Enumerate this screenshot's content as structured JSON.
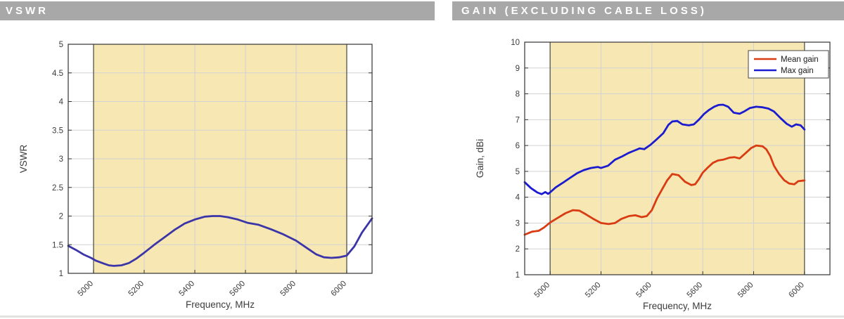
{
  "page": {
    "background": "#ffffff",
    "header_bar_color": "#a8a8a8",
    "header_text_color": "#ffffff"
  },
  "panels": [
    {
      "header": "VSWR"
    },
    {
      "header": "GAIN (EXCLUDING CABLE LOSS)"
    }
  ],
  "chart_data": [
    {
      "type": "line",
      "title": "VSWR",
      "xlabel": "Frequency, MHz",
      "ylabel": "VSWR",
      "xlim": [
        4900,
        6100
      ],
      "ylim": [
        1,
        5
      ],
      "xticks": [
        5000,
        5200,
        5400,
        5600,
        5800,
        6000
      ],
      "yticks": [
        1,
        1.5,
        2,
        2.5,
        3,
        3.5,
        4,
        4.5,
        5
      ],
      "grid": true,
      "grid_color": "#d2d2d2",
      "axis_color": "#333333",
      "tick_label_color": "#3c3c3c",
      "highlight_band": {
        "from": 5000,
        "to": 6000,
        "color": "#f7e7b2",
        "edge_color": "#55544b"
      },
      "legend": null,
      "series": [
        {
          "name": "VSWR",
          "color": "#3b35a8",
          "x": [
            4900,
            4930,
            4960,
            4990,
            5010,
            5040,
            5060,
            5080,
            5110,
            5140,
            5170,
            5200,
            5240,
            5280,
            5320,
            5360,
            5400,
            5440,
            5470,
            5500,
            5530,
            5570,
            5610,
            5650,
            5700,
            5750,
            5800,
            5850,
            5880,
            5910,
            5940,
            5970,
            6000,
            6030,
            6060,
            6100
          ],
          "y": [
            1.48,
            1.41,
            1.33,
            1.27,
            1.22,
            1.17,
            1.14,
            1.13,
            1.14,
            1.18,
            1.26,
            1.36,
            1.5,
            1.63,
            1.76,
            1.87,
            1.94,
            1.99,
            2.0,
            2.0,
            1.98,
            1.94,
            1.88,
            1.85,
            1.77,
            1.68,
            1.57,
            1.42,
            1.33,
            1.28,
            1.27,
            1.28,
            1.31,
            1.47,
            1.71,
            1.96
          ]
        }
      ]
    },
    {
      "type": "line",
      "title": "GAIN (EXCLUDING CABLE LOSS)",
      "xlabel": "Frequency, MHz",
      "ylabel": "Gain, dBi",
      "xlim": [
        4900,
        6100
      ],
      "ylim": [
        1,
        10
      ],
      "xticks": [
        5000,
        5200,
        5400,
        5600,
        5800,
        6000
      ],
      "yticks": [
        1,
        2,
        3,
        4,
        5,
        6,
        7,
        8,
        9,
        10
      ],
      "grid": true,
      "grid_color": "#d2d2d2",
      "axis_color": "#333333",
      "tick_label_color": "#3c3c3c",
      "highlight_band": {
        "from": 5000,
        "to": 6000,
        "color": "#f7e7b2",
        "edge_color": "#55544b"
      },
      "legend": {
        "position": "top-right",
        "entries": [
          "Mean gain",
          "Max gain"
        ]
      },
      "series": [
        {
          "name": "Mean gain",
          "color": "#d93b12",
          "x": [
            4900,
            4930,
            4955,
            4975,
            5000,
            5030,
            5060,
            5090,
            5115,
            5140,
            5170,
            5200,
            5230,
            5255,
            5280,
            5310,
            5335,
            5360,
            5380,
            5400,
            5420,
            5440,
            5460,
            5480,
            5505,
            5530,
            5555,
            5570,
            5585,
            5600,
            5620,
            5640,
            5660,
            5680,
            5705,
            5725,
            5745,
            5770,
            5790,
            5810,
            5835,
            5850,
            5865,
            5880,
            5900,
            5920,
            5940,
            5960,
            5975,
            6000
          ],
          "y": [
            2.55,
            2.67,
            2.7,
            2.82,
            3.02,
            3.2,
            3.38,
            3.5,
            3.48,
            3.34,
            3.16,
            3.0,
            2.96,
            3.0,
            3.16,
            3.27,
            3.3,
            3.23,
            3.27,
            3.5,
            3.95,
            4.3,
            4.65,
            4.9,
            4.85,
            4.6,
            4.47,
            4.5,
            4.7,
            4.95,
            5.15,
            5.33,
            5.42,
            5.45,
            5.53,
            5.55,
            5.5,
            5.72,
            5.9,
            6.0,
            5.97,
            5.85,
            5.6,
            5.22,
            4.9,
            4.66,
            4.53,
            4.5,
            4.62,
            4.65
          ]
        },
        {
          "name": "Max gain",
          "color": "#1b1ccf",
          "x": [
            4900,
            4925,
            4950,
            4967,
            4981,
            4992,
            5000,
            5022,
            5050,
            5077,
            5105,
            5132,
            5160,
            5187,
            5200,
            5228,
            5255,
            5283,
            5310,
            5330,
            5352,
            5370,
            5395,
            5420,
            5445,
            5465,
            5480,
            5500,
            5520,
            5545,
            5565,
            5585,
            5605,
            5625,
            5645,
            5662,
            5680,
            5700,
            5722,
            5745,
            5765,
            5785,
            5810,
            5835,
            5858,
            5880,
            5905,
            5930,
            5950,
            5967,
            5985,
            6000
          ],
          "y": [
            4.58,
            4.35,
            4.18,
            4.12,
            4.2,
            4.13,
            4.19,
            4.38,
            4.56,
            4.74,
            4.92,
            5.05,
            5.13,
            5.17,
            5.13,
            5.22,
            5.45,
            5.58,
            5.72,
            5.8,
            5.89,
            5.86,
            6.03,
            6.25,
            6.48,
            6.8,
            6.93,
            6.95,
            6.82,
            6.78,
            6.82,
            7.0,
            7.22,
            7.38,
            7.5,
            7.57,
            7.58,
            7.5,
            7.27,
            7.23,
            7.33,
            7.45,
            7.5,
            7.48,
            7.43,
            7.32,
            7.07,
            6.84,
            6.73,
            6.82,
            6.78,
            6.62
          ]
        }
      ]
    }
  ]
}
